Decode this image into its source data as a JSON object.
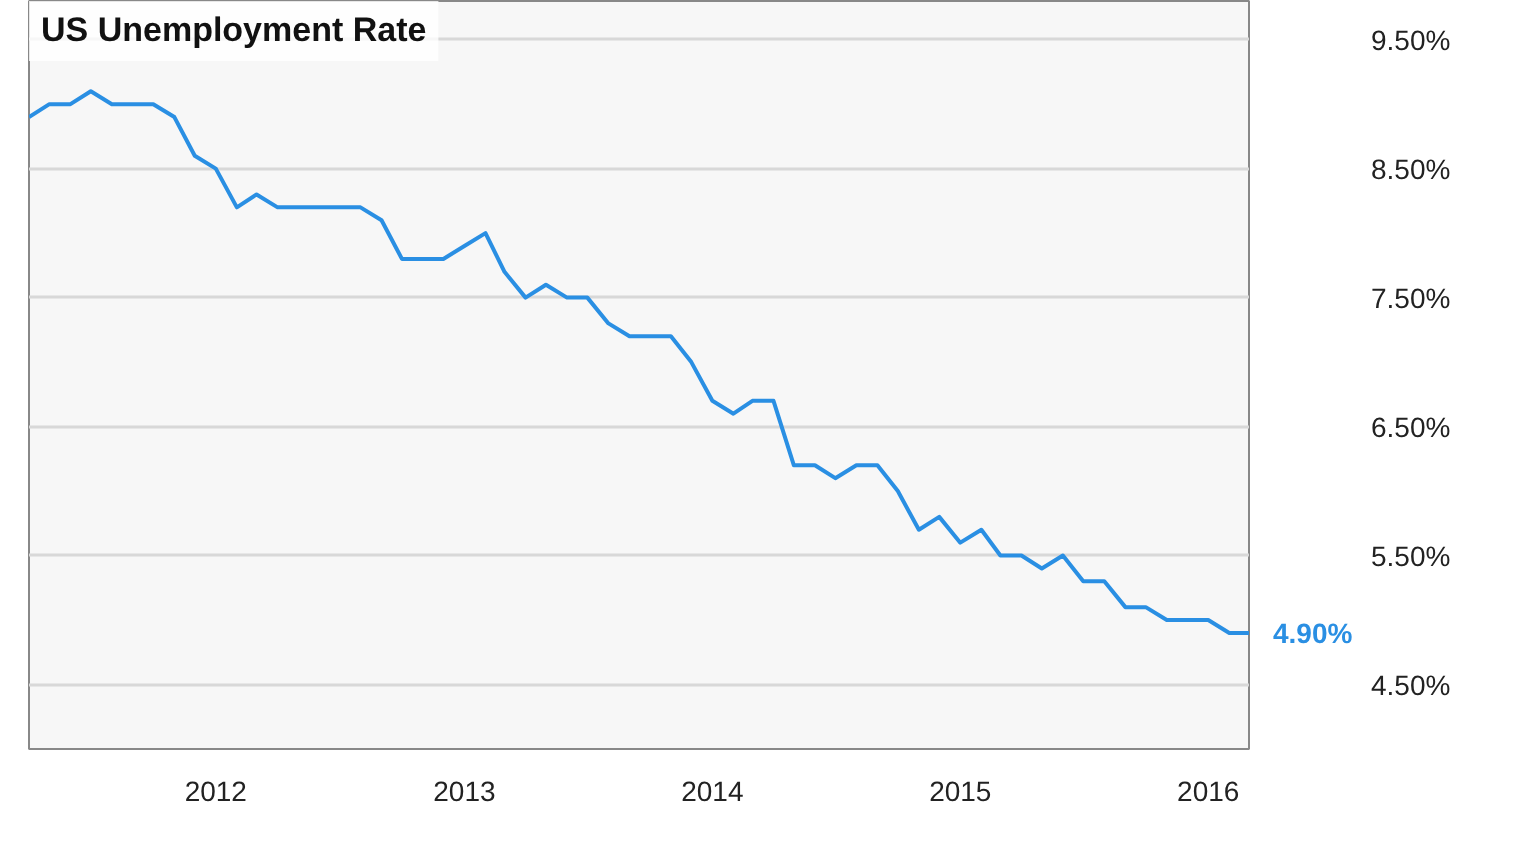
{
  "chart_data": {
    "type": "line",
    "title": "US Unemployment Rate",
    "x": [
      "2011-04",
      "2011-05",
      "2011-06",
      "2011-07",
      "2011-08",
      "2011-09",
      "2011-10",
      "2011-11",
      "2011-12",
      "2012-01",
      "2012-02",
      "2012-03",
      "2012-04",
      "2012-05",
      "2012-06",
      "2012-07",
      "2012-08",
      "2012-09",
      "2012-10",
      "2012-11",
      "2012-12",
      "2013-01",
      "2013-02",
      "2013-03",
      "2013-04",
      "2013-05",
      "2013-06",
      "2013-07",
      "2013-08",
      "2013-09",
      "2013-10",
      "2013-11",
      "2013-12",
      "2014-01",
      "2014-02",
      "2014-03",
      "2014-04",
      "2014-05",
      "2014-06",
      "2014-07",
      "2014-08",
      "2014-09",
      "2014-10",
      "2014-11",
      "2014-12",
      "2015-01",
      "2015-02",
      "2015-03",
      "2015-04",
      "2015-05",
      "2015-06",
      "2015-07",
      "2015-08",
      "2015-09",
      "2015-10",
      "2015-11",
      "2015-12",
      "2016-01",
      "2016-02",
      "2016-03"
    ],
    "series": [
      {
        "color": "#2a8fe3",
        "values": [
          8.9,
          9.0,
          9.0,
          9.1,
          9.0,
          9.0,
          9.0,
          8.9,
          8.6,
          8.5,
          8.2,
          8.3,
          8.2,
          8.2,
          8.2,
          8.2,
          8.2,
          8.1,
          7.8,
          7.8,
          7.8,
          7.9,
          8.0,
          7.7,
          7.5,
          7.6,
          7.5,
          7.5,
          7.3,
          7.2,
          7.2,
          7.2,
          7.0,
          6.7,
          6.6,
          6.7,
          6.7,
          6.2,
          6.2,
          6.1,
          6.2,
          6.2,
          6.0,
          5.7,
          5.8,
          5.6,
          5.7,
          5.5,
          5.5,
          5.4,
          5.5,
          5.3,
          5.3,
          5.1,
          5.1,
          5.0,
          5.0,
          5.0,
          4.9,
          4.9
        ]
      }
    ],
    "xlim": [
      "2011-04",
      "2016-03"
    ],
    "xticks": [
      {
        "value": "2012-01",
        "label": "2012"
      },
      {
        "value": "2013-01",
        "label": "2013"
      },
      {
        "value": "2014-01",
        "label": "2014"
      },
      {
        "value": "2015-01",
        "label": "2015"
      },
      {
        "value": "2016-01",
        "label": "2016"
      }
    ],
    "ylim": [
      4.0,
      9.8
    ],
    "yticks": [
      {
        "value": 4.5,
        "label": "4.50%"
      },
      {
        "value": 5.5,
        "label": "5.50%"
      },
      {
        "value": 6.5,
        "label": "6.50%"
      },
      {
        "value": 7.5,
        "label": "7.50%"
      },
      {
        "value": 8.5,
        "label": "8.50%"
      },
      {
        "value": 9.5,
        "label": "9.50%"
      }
    ],
    "grid": true,
    "marker": "none",
    "line_style": "solid",
    "annotations": [
      {
        "text": "4.90%",
        "x": "2016-03",
        "y": 4.9
      }
    ]
  }
}
